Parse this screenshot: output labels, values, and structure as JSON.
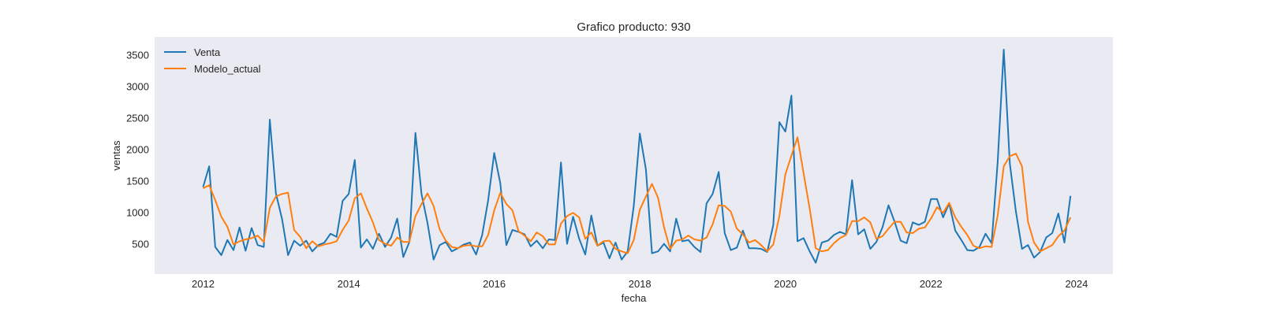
{
  "chart_data": {
    "type": "line",
    "title": "Grafico producto: 930",
    "xlabel": "fecha",
    "ylabel": "ventas",
    "x_start": "2012-01",
    "x_frequency": "monthly",
    "xlim": [
      "2011-05",
      "2024-07"
    ],
    "ylim": [
      20,
      3780
    ],
    "x_ticks": [
      "2012",
      "2014",
      "2016",
      "2018",
      "2020",
      "2022",
      "2024"
    ],
    "y_ticks": [
      500,
      1000,
      1500,
      2000,
      2500,
      3000,
      3500
    ],
    "grid": false,
    "legend": "top-left",
    "colors": {
      "background": "#eaeaf2",
      "venta": "#1f77b4",
      "modelo": "#ff7f0e"
    },
    "series": [
      {
        "name": "Venta",
        "values": [
          1400,
          1730,
          450,
          320,
          560,
          400,
          760,
          390,
          750,
          480,
          450,
          2470,
          1300,
          900,
          320,
          550,
          470,
          550,
          380,
          480,
          520,
          660,
          610,
          1180,
          1290,
          1830,
          440,
          570,
          420,
          660,
          450,
          600,
          900,
          290,
          530,
          2260,
          1290,
          830,
          250,
          480,
          530,
          380,
          430,
          490,
          520,
          330,
          640,
          1190,
          1940,
          1460,
          480,
          720,
          690,
          650,
          460,
          550,
          430,
          570,
          560,
          1790,
          500,
          930,
          580,
          330,
          950,
          470,
          520,
          270,
          520,
          250,
          380,
          1100,
          2250,
          1680,
          350,
          380,
          500,
          380,
          900,
          540,
          560,
          450,
          370,
          1140,
          1290,
          1640,
          670,
          400,
          440,
          710,
          430,
          430,
          420,
          370,
          800,
          2430,
          2280,
          2850,
          540,
          590,
          380,
          200,
          520,
          550,
          640,
          690,
          650,
          1510,
          650,
          730,
          420,
          530,
          760,
          1110,
          850,
          550,
          510,
          840,
          800,
          850,
          1210,
          1210,
          920,
          1140,
          710,
          560,
          400,
          390,
          450,
          660,
          510,
          1800,
          3580,
          1770,
          1010,
          420,
          480,
          280,
          370,
          600,
          670,
          980,
          520,
          1260
        ]
      },
      {
        "name": "Modelo_actual",
        "values": [
          1380,
          1430,
          1190,
          930,
          770,
          490,
          540,
          570,
          590,
          630,
          530,
          1070,
          1250,
          1290,
          1310,
          720,
          610,
          430,
          540,
          460,
          490,
          510,
          540,
          720,
          870,
          1220,
          1300,
          1060,
          840,
          560,
          500,
          470,
          600,
          530,
          530,
          940,
          1130,
          1300,
          1100,
          730,
          550,
          450,
          430,
          470,
          480,
          460,
          460,
          640,
          1030,
          1310,
          1130,
          1030,
          700,
          630,
          540,
          680,
          620,
          490,
          490,
          820,
          940,
          990,
          920,
          580,
          680,
          470,
          540,
          550,
          420,
          380,
          350,
          560,
          1040,
          1250,
          1450,
          1230,
          760,
          420,
          550,
          570,
          630,
          570,
          550,
          600,
          810,
          1110,
          1100,
          1010,
          740,
          650,
          520,
          560,
          480,
          380,
          490,
          940,
          1600,
          1900,
          2190,
          1620,
          1060,
          430,
          380,
          400,
          510,
          590,
          640,
          860,
          860,
          920,
          840,
          580,
          620,
          740,
          850,
          850,
          680,
          670,
          740,
          760,
          900,
          1080,
          990,
          1150,
          920,
          770,
          640,
          470,
          430,
          460,
          450,
          950,
          1730,
          1890,
          1930,
          1730,
          850,
          520,
          380,
          430,
          480,
          620,
          710,
          920
        ]
      }
    ]
  }
}
